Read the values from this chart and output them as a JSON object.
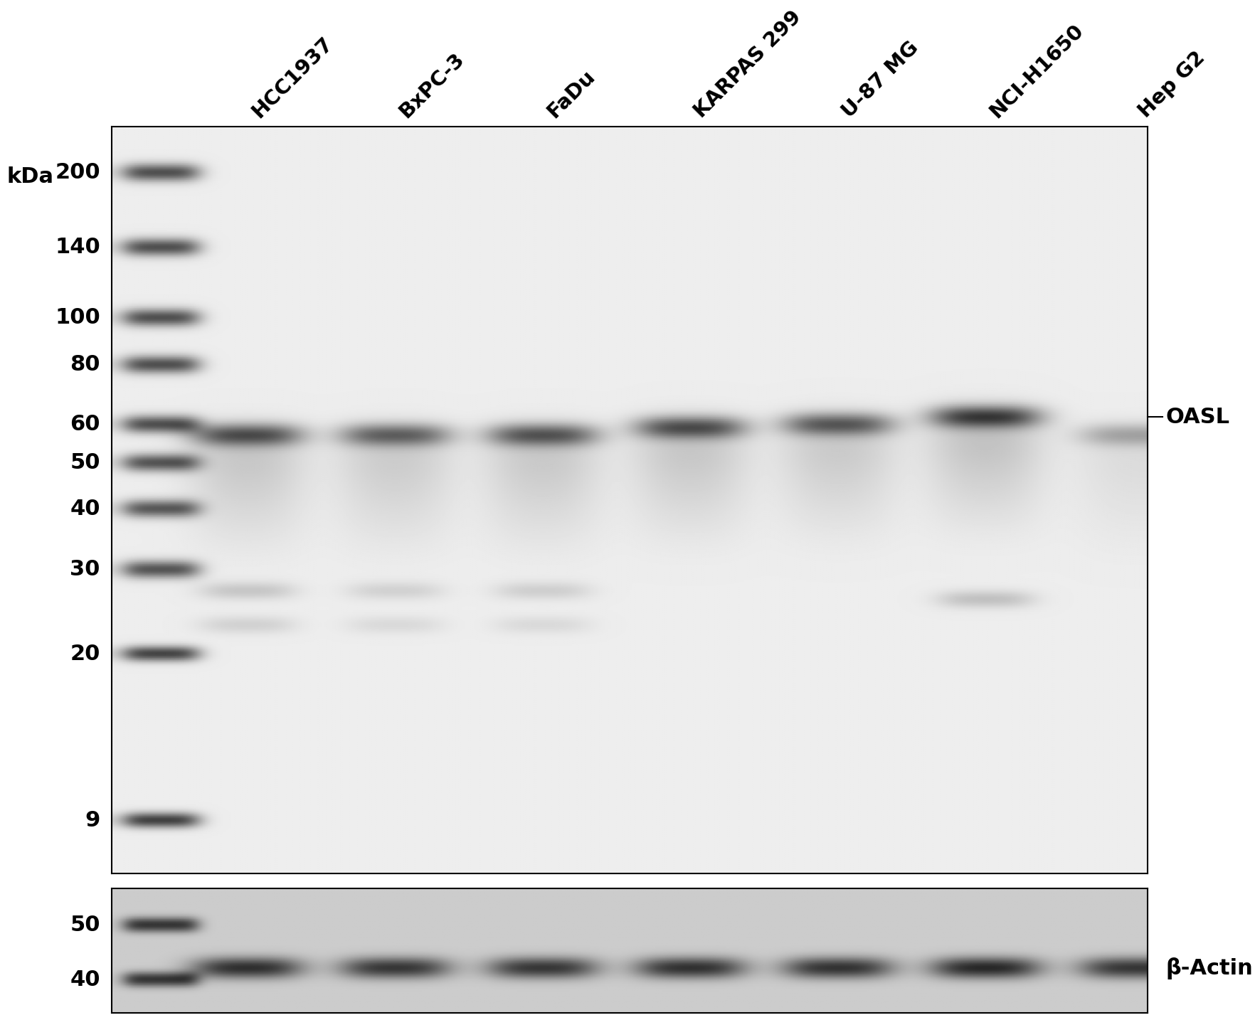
{
  "cell_lines": [
    "HCC1937",
    "BxPC-3",
    "FaDu",
    "KARPAS 299",
    "U-87 MG",
    "NCI-H1650",
    "Hep G2"
  ],
  "kda_label": "kDa",
  "upper_marker_bands": [
    200,
    140,
    100,
    80,
    60,
    50,
    40,
    30,
    20,
    9
  ],
  "upper_panel_label": "OASL",
  "lower_panel_label": "β-Actin",
  "lower_marker_bands": [
    50,
    40
  ],
  "background_color": "#ffffff",
  "text_color": "#000000",
  "tick_fontsize": 22,
  "label_fontsize": 22,
  "col_header_fontsize": 21
}
